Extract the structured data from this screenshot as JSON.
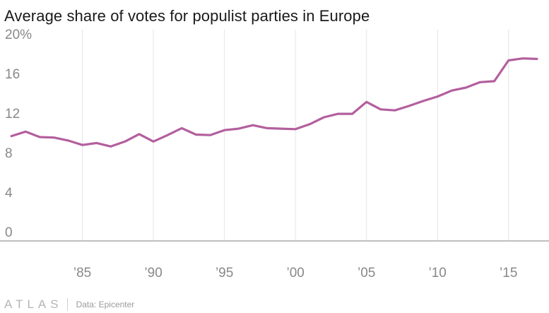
{
  "title": "Average share of votes for populist parties in Europe",
  "footer": {
    "logo": "ATLAS",
    "source": "Data: Epicenter"
  },
  "colors": {
    "line": "#b35f9d",
    "grid": "#e4e4e4",
    "baseline": "#999999",
    "tick": "#888888"
  },
  "chart_data": {
    "type": "line",
    "title": "Average share of votes for populist parties in Europe",
    "xlabel": "",
    "ylabel": "",
    "ylim": [
      0,
      20
    ],
    "xlim": [
      1979.5,
      2017.5
    ],
    "y_ticks": [
      0,
      4,
      8,
      12,
      16,
      20
    ],
    "y_tick_labels": [
      "0",
      "4",
      "8",
      "12",
      "16",
      "20%"
    ],
    "x_ticks": [
      1985,
      1990,
      1995,
      2000,
      2005,
      2010,
      2015
    ],
    "x_tick_labels": [
      "’85",
      "’90",
      "’95",
      "’00",
      "’05",
      "’10",
      "’15"
    ],
    "grid": "vertical",
    "x": [
      1980,
      1981,
      1982,
      1983,
      1984,
      1985,
      1986,
      1987,
      1988,
      1989,
      1990,
      1991,
      1992,
      1993,
      1994,
      1995,
      1996,
      1997,
      1998,
      1999,
      2000,
      2001,
      2002,
      2003,
      2004,
      2005,
      2006,
      2007,
      2008,
      2009,
      2010,
      2011,
      2012,
      2013,
      2014,
      2015,
      2016,
      2017
    ],
    "series": [
      {
        "values": [
          10.6,
          11.05,
          10.5,
          10.45,
          10.15,
          9.7,
          9.9,
          9.55,
          10.05,
          10.8,
          10.05,
          10.7,
          11.4,
          10.75,
          10.7,
          11.2,
          11.35,
          11.7,
          11.4,
          11.35,
          11.3,
          11.8,
          12.5,
          12.85,
          12.85,
          14.05,
          13.3,
          13.2,
          13.65,
          14.15,
          14.6,
          15.2,
          15.5,
          16.05,
          16.15,
          18.25,
          18.45,
          18.4
        ]
      }
    ]
  }
}
